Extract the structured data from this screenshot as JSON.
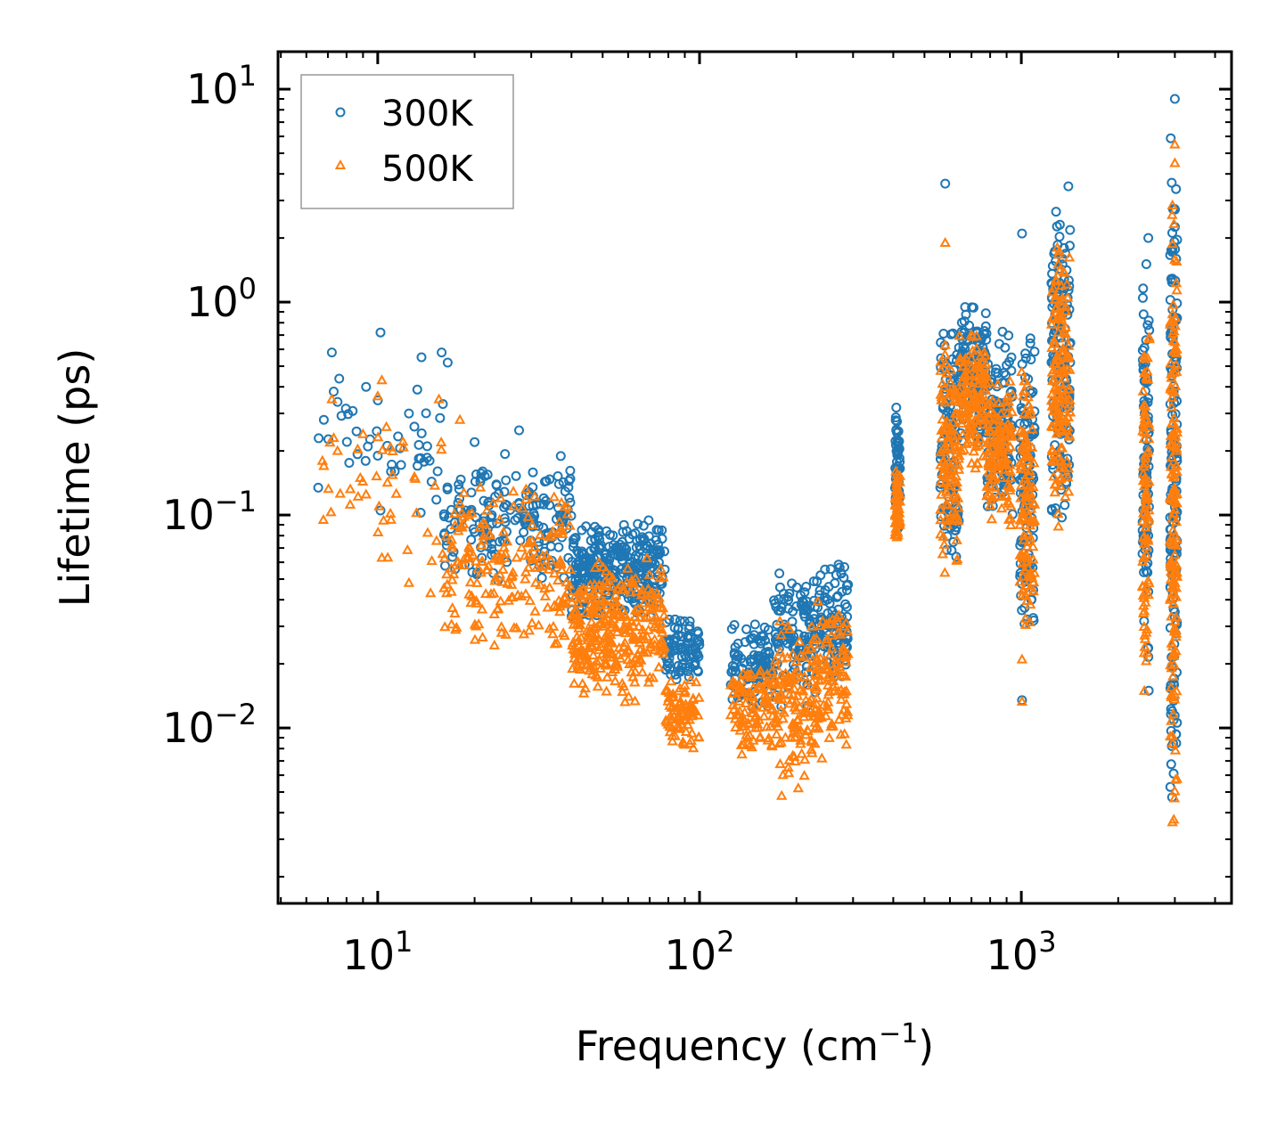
{
  "chart_data": {
    "type": "scatter",
    "xscale": "log",
    "yscale": "log",
    "xlim": [
      4.9,
      4500
    ],
    "ylim": [
      0.0015,
      15
    ],
    "xlabel_main": "Frequency (cm",
    "xlabel_sup": "−1",
    "xlabel_close": ")",
    "ylabel": "Lifetime (ps)",
    "xticks": [
      {
        "value": 10,
        "base": "10",
        "exp": "1"
      },
      {
        "value": 100,
        "base": "10",
        "exp": "2"
      },
      {
        "value": 1000,
        "base": "10",
        "exp": "3"
      }
    ],
    "yticks": [
      {
        "value": 10,
        "base": "10",
        "exp": "1"
      },
      {
        "value": 1,
        "base": "10",
        "exp": "0"
      },
      {
        "value": 0.1,
        "base": "10",
        "exp": "−1"
      },
      {
        "value": 0.01,
        "base": "10",
        "exp": "−2"
      }
    ],
    "legend": {
      "position": "top-left"
    },
    "series": [
      {
        "name": "300K",
        "marker": "circle",
        "color": "#1f77b4",
        "clusters": [
          {
            "x": [
              6.5,
              16
            ],
            "y": [
              0.07,
              0.7
            ],
            "n": 40
          },
          {
            "x": [
              16,
              40
            ],
            "y": [
              0.045,
              0.2
            ],
            "n": 180
          },
          {
            "x": [
              40,
              78
            ],
            "y": [
              0.032,
              0.1
            ],
            "n": 300
          },
          {
            "x": [
              78,
              100
            ],
            "y": [
              0.016,
              0.035
            ],
            "n": 80
          },
          {
            "x": [
              125,
              170
            ],
            "y": [
              0.012,
              0.033
            ],
            "n": 100
          },
          {
            "x": [
              170,
              230
            ],
            "y": [
              0.012,
              0.055
            ],
            "n": 120
          },
          {
            "x": [
              230,
              290
            ],
            "y": [
              0.015,
              0.062
            ],
            "n": 100
          },
          {
            "x": [
              405,
              420
            ],
            "y": [
              0.08,
              0.35
            ],
            "n": 60
          },
          {
            "x": [
              560,
              640
            ],
            "y": [
              0.05,
              0.9
            ],
            "n": 110
          },
          {
            "x": [
              640,
              780
            ],
            "y": [
              0.2,
              1.05
            ],
            "n": 130
          },
          {
            "x": [
              780,
              940
            ],
            "y": [
              0.09,
              0.8
            ],
            "n": 120
          },
          {
            "x": [
              990,
              1100
            ],
            "y": [
              0.022,
              0.95
            ],
            "n": 110
          },
          {
            "x": [
              1240,
              1420
            ],
            "y": [
              0.07,
              3.5
            ],
            "n": 150
          },
          {
            "x": [
              2380,
              2500
            ],
            "y": [
              0.012,
              2.0
            ],
            "n": 90
          },
          {
            "x": [
              2900,
              3050
            ],
            "y": [
              0.0022,
              9.0
            ],
            "n": 160
          }
        ],
        "points": [
          {
            "x": 6.8,
            "y": 0.28
          },
          {
            "x": 7.2,
            "y": 0.58
          },
          {
            "x": 7.3,
            "y": 0.38
          },
          {
            "x": 7.5,
            "y": 0.34
          },
          {
            "x": 9.2,
            "y": 0.4
          },
          {
            "x": 10.2,
            "y": 0.72
          },
          {
            "x": 10,
            "y": 0.19
          },
          {
            "x": 10.2,
            "y": 0.105
          },
          {
            "x": 11,
            "y": 0.16
          },
          {
            "x": 12.5,
            "y": 0.3
          },
          {
            "x": 13,
            "y": 0.26
          },
          {
            "x": 14.5,
            "y": 0.18
          },
          {
            "x": 15.8,
            "y": 0.58
          },
          {
            "x": 16.5,
            "y": 0.52
          },
          {
            "x": 20,
            "y": 0.22
          },
          {
            "x": 27.5,
            "y": 0.25
          },
          {
            "x": 1005,
            "y": 2.1
          },
          {
            "x": 1005,
            "y": 0.0135
          },
          {
            "x": 580,
            "y": 3.6
          },
          {
            "x": 1400,
            "y": 3.5
          },
          {
            "x": 2480,
            "y": 2.0
          },
          {
            "x": 3000,
            "y": 9.0
          },
          {
            "x": 2950,
            "y": 1.8
          }
        ]
      },
      {
        "name": "500K",
        "marker": "triangle",
        "color": "#ff7f0e",
        "clusters": [
          {
            "x": [
              6.5,
              16
            ],
            "y": [
              0.045,
              0.45
            ],
            "n": 40
          },
          {
            "x": [
              16,
              40
            ],
            "y": [
              0.022,
              0.14
            ],
            "n": 200
          },
          {
            "x": [
              40,
              78
            ],
            "y": [
              0.013,
              0.065
            ],
            "n": 320
          },
          {
            "x": [
              78,
              100
            ],
            "y": [
              0.007,
              0.018
            ],
            "n": 90
          },
          {
            "x": [
              125,
              170
            ],
            "y": [
              0.007,
              0.02
            ],
            "n": 100
          },
          {
            "x": [
              170,
              230
            ],
            "y": [
              0.005,
              0.035
            ],
            "n": 130
          },
          {
            "x": [
              230,
              290
            ],
            "y": [
              0.008,
              0.04
            ],
            "n": 100
          },
          {
            "x": [
              405,
              420
            ],
            "y": [
              0.07,
              0.17
            ],
            "n": 60
          },
          {
            "x": [
              560,
              640
            ],
            "y": [
              0.045,
              0.7
            ],
            "n": 110
          },
          {
            "x": [
              640,
              780
            ],
            "y": [
              0.15,
              0.8
            ],
            "n": 130
          },
          {
            "x": [
              780,
              940
            ],
            "y": [
              0.08,
              0.5
            ],
            "n": 120
          },
          {
            "x": [
              990,
              1100
            ],
            "y": [
              0.021,
              0.6
            ],
            "n": 110
          },
          {
            "x": [
              1240,
              1420
            ],
            "y": [
              0.07,
              2.2
            ],
            "n": 150
          },
          {
            "x": [
              2380,
              2500
            ],
            "y": [
              0.012,
              1.0
            ],
            "n": 90
          },
          {
            "x": [
              2900,
              3050
            ],
            "y": [
              0.0022,
              5.5
            ],
            "n": 160
          }
        ],
        "points": [
          {
            "x": 6.8,
            "y": 0.17
          },
          {
            "x": 7.2,
            "y": 0.35
          },
          {
            "x": 7.3,
            "y": 0.23
          },
          {
            "x": 7.5,
            "y": 0.2
          },
          {
            "x": 9,
            "y": 0.24
          },
          {
            "x": 10.3,
            "y": 0.43
          },
          {
            "x": 10.1,
            "y": 0.11
          },
          {
            "x": 10.3,
            "y": 0.063
          },
          {
            "x": 11,
            "y": 0.095
          },
          {
            "x": 12.5,
            "y": 0.048
          },
          {
            "x": 15.5,
            "y": 0.35
          },
          {
            "x": 18,
            "y": 0.28
          },
          {
            "x": 14.6,
            "y": 0.043
          },
          {
            "x": 1005,
            "y": 0.0133
          },
          {
            "x": 1005,
            "y": 0.021
          },
          {
            "x": 580,
            "y": 1.9
          },
          {
            "x": 3000,
            "y": 5.5
          },
          {
            "x": 3000,
            "y": 4.5
          },
          {
            "x": 240,
            "y": 0.0072
          },
          {
            "x": 180,
            "y": 0.0048
          }
        ]
      }
    ]
  }
}
